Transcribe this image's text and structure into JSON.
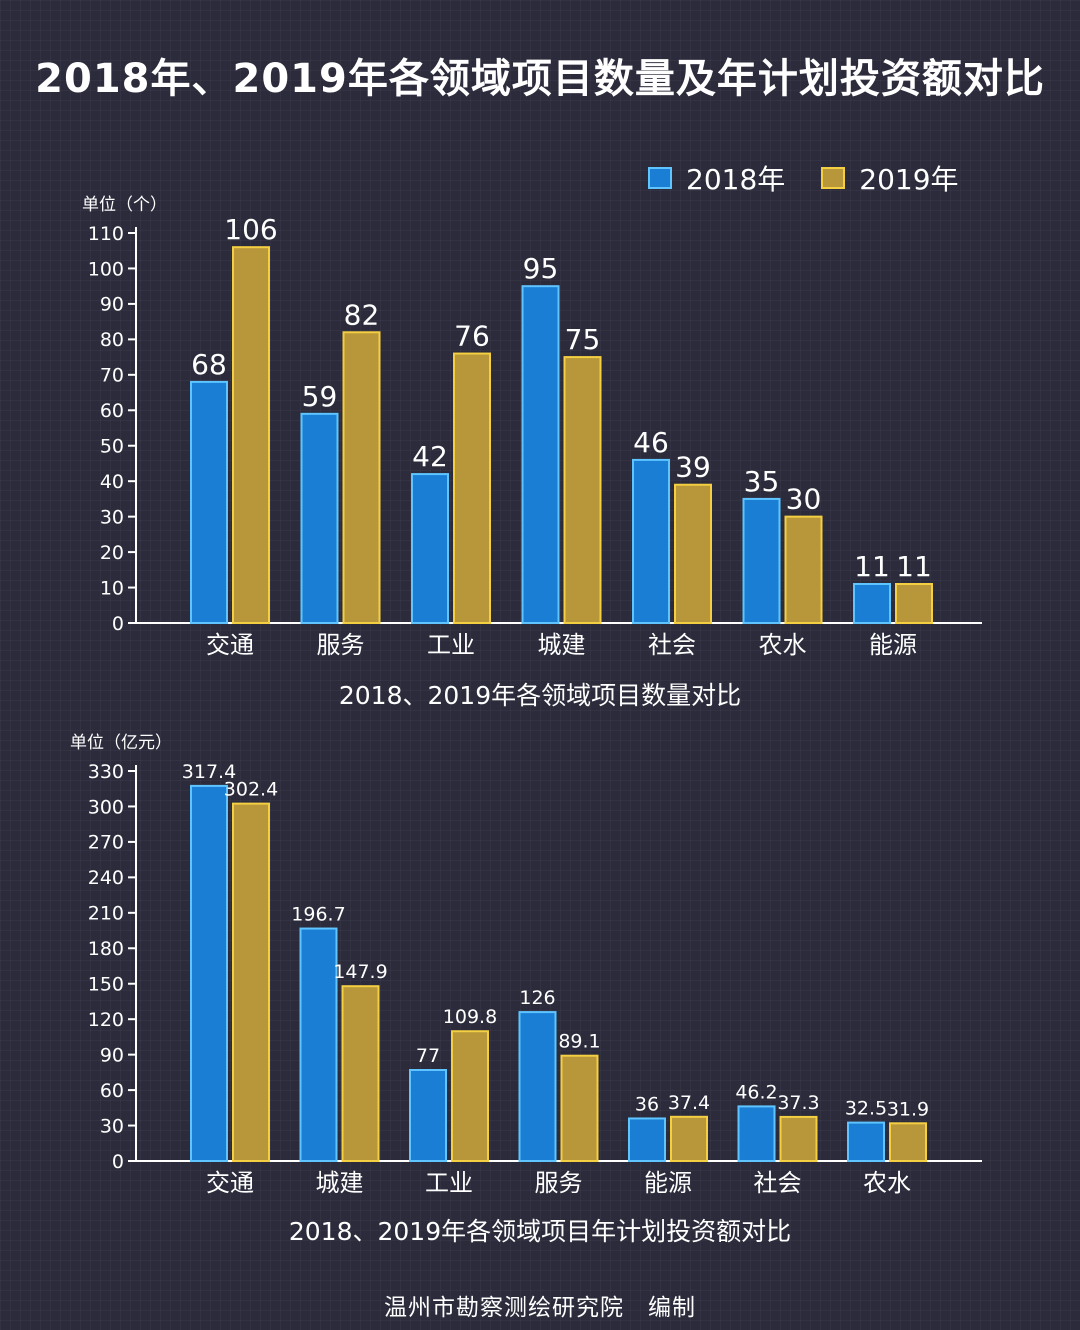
{
  "title": "2018年、2019年各领域项目数量及年计划投资额对比",
  "footer": "温州市勘察测绘研究院　编制",
  "legend": [
    {
      "label": "2018年",
      "color": "#1a7fd4"
    },
    {
      "label": "2019年",
      "color": "#b8963a"
    }
  ],
  "colors": {
    "series_2018": "#1a7fd4",
    "series_2018_border": "#5fc4ff",
    "series_2019": "#b8963a",
    "series_2019_border": "#f4cf42"
  },
  "chart_data": [
    {
      "type": "bar",
      "title": "2018、2019年各领域项目数量对比",
      "unit": "单位（个）",
      "categories": [
        "交通",
        "服务",
        "工业",
        "城建",
        "社会",
        "农水",
        "能源"
      ],
      "series": [
        {
          "name": "2018年",
          "values": [
            68,
            59,
            42,
            95,
            46,
            35,
            11
          ]
        },
        {
          "name": "2019年",
          "values": [
            106,
            82,
            76,
            75,
            39,
            30,
            11
          ]
        }
      ],
      "yticks": [
        0,
        10,
        20,
        30,
        40,
        50,
        60,
        70,
        80,
        90,
        100,
        110
      ],
      "ylim": [
        0,
        110
      ],
      "grid": false,
      "legend": "top-right"
    },
    {
      "type": "bar",
      "title": "2018、2019年各领域项目年计划投资额对比",
      "unit": "单位（亿元）",
      "categories": [
        "交通",
        "城建",
        "工业",
        "服务",
        "能源",
        "社会",
        "农水"
      ],
      "series": [
        {
          "name": "2018年",
          "values": [
            317.4,
            196.7,
            77,
            126,
            36,
            46.2,
            32.5
          ]
        },
        {
          "name": "2019年",
          "values": [
            302.4,
            147.9,
            109.8,
            89.1,
            37.4,
            37.3,
            31.9
          ]
        }
      ],
      "yticks": [
        0,
        30,
        60,
        90,
        120,
        150,
        180,
        210,
        240,
        270,
        300,
        330
      ],
      "ylim": [
        0,
        330
      ],
      "grid": false
    }
  ]
}
